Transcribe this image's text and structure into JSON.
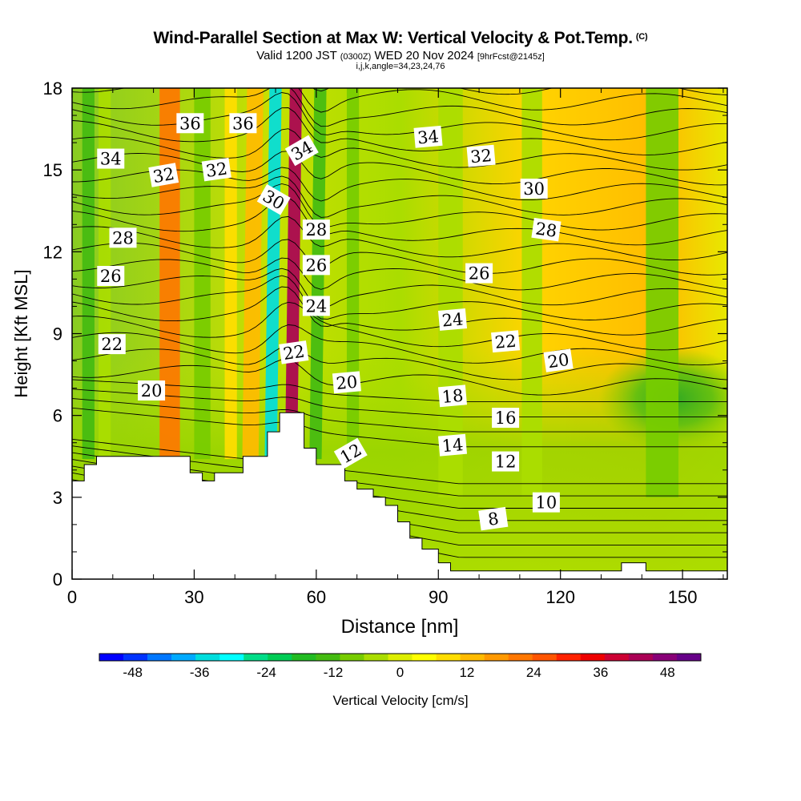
{
  "title": {
    "main": "Wind-Parallel Section at Max W: Vertical Velocity & Pot.Temp.",
    "copyright": "(C)",
    "valid": "Valid 1200 JST",
    "valid_utc": "(0300Z)",
    "date": "WED 20 Nov 2024",
    "forecast": "[9hrFcst@2145z]",
    "indices": "i,j,k,angle=34,23,24,76"
  },
  "chart_data": {
    "type": "heatmap",
    "xlabel": "Distance [nm]",
    "ylabel": "Height [Kft MSL]",
    "xlim": [
      0,
      161
    ],
    "ylim": [
      0,
      18
    ],
    "x_ticks": [
      0,
      30,
      60,
      90,
      120,
      150
    ],
    "y_ticks": [
      0,
      3,
      6,
      9,
      12,
      15,
      18
    ],
    "colorbar": {
      "label": "Vertical Velocity [cm/s]",
      "ticks": [
        -48,
        -36,
        -24,
        -12,
        0,
        12,
        24,
        36,
        48
      ],
      "range": [
        -54,
        54
      ],
      "colors": [
        "#0000ff",
        "#0033ff",
        "#0077ff",
        "#00aaff",
        "#00dddd",
        "#00ffff",
        "#00dd88",
        "#00cc55",
        "#22bb22",
        "#44bb11",
        "#77cc00",
        "#aadd00",
        "#ddee00",
        "#ffff00",
        "#ffdd00",
        "#ffbb00",
        "#ff9900",
        "#ff7700",
        "#ff5500",
        "#ff2200",
        "#ee0000",
        "#cc0033",
        "#aa0055",
        "#880077",
        "#660088"
      ]
    },
    "velocity_bands": [
      {
        "x": 4,
        "width": 3,
        "w": -14
      },
      {
        "x": 8,
        "width": 3,
        "w": -5
      },
      {
        "x": 24,
        "width": 5,
        "w": 20
      },
      {
        "x": 32,
        "width": 4,
        "w": -10
      },
      {
        "x": 39,
        "width": 3,
        "w": 8
      },
      {
        "x": 45,
        "width": 4,
        "w": 14
      },
      {
        "x": 50,
        "width": 3,
        "w": -34
      },
      {
        "x": 55,
        "width": 3,
        "w": 42
      },
      {
        "x": 61,
        "width": 3,
        "w": -12
      },
      {
        "x": 69,
        "width": 3,
        "w": -10
      },
      {
        "x": 93,
        "width": 6,
        "w": -4
      },
      {
        "x": 113,
        "width": 5,
        "w": -6
      },
      {
        "x": 145,
        "width": 8,
        "w": -8
      }
    ],
    "terrain": [
      [
        0,
        3.6
      ],
      [
        3,
        3.6
      ],
      [
        3,
        4.2
      ],
      [
        6,
        4.2
      ],
      [
        6,
        4.5
      ],
      [
        29,
        4.5
      ],
      [
        29,
        3.9
      ],
      [
        32,
        3.9
      ],
      [
        32,
        3.6
      ],
      [
        35,
        3.6
      ],
      [
        35,
        3.9
      ],
      [
        42,
        3.9
      ],
      [
        42,
        4.5
      ],
      [
        48,
        4.5
      ],
      [
        48,
        5.4
      ],
      [
        51,
        5.4
      ],
      [
        51,
        6.1
      ],
      [
        57,
        6.1
      ],
      [
        57,
        4.8
      ],
      [
        60,
        4.8
      ],
      [
        60,
        4.2
      ],
      [
        67,
        4.2
      ],
      [
        67,
        3.6
      ],
      [
        70,
        3.6
      ],
      [
        70,
        3.3
      ],
      [
        74,
        3.3
      ],
      [
        74,
        3.0
      ],
      [
        77,
        3.0
      ],
      [
        77,
        2.7
      ],
      [
        80,
        2.7
      ],
      [
        80,
        2.1
      ],
      [
        83,
        2.1
      ],
      [
        83,
        1.5
      ],
      [
        86,
        1.5
      ],
      [
        86,
        1.1
      ],
      [
        90,
        1.1
      ],
      [
        90,
        0.6
      ],
      [
        93,
        0.6
      ],
      [
        93,
        0.3
      ],
      [
        135,
        0.3
      ],
      [
        135,
        0.6
      ],
      [
        141,
        0.6
      ],
      [
        141,
        0.3
      ],
      [
        161,
        0.3
      ],
      [
        161,
        0
      ],
      [
        0,
        0
      ]
    ],
    "isentropes": [
      8,
      10,
      12,
      14,
      16,
      18,
      20,
      22,
      24,
      26,
      28,
      30,
      32,
      34,
      36
    ],
    "contour_labels": [
      {
        "text": "36",
        "x": 29,
        "y": 16.7,
        "angle": 0
      },
      {
        "text": "36",
        "x": 42,
        "y": 16.7,
        "angle": 0
      },
      {
        "text": "34",
        "x": 9.5,
        "y": 15.4,
        "angle": 0
      },
      {
        "text": "32",
        "x": 22.5,
        "y": 14.8,
        "angle": -10
      },
      {
        "text": "32",
        "x": 35.5,
        "y": 15.0,
        "angle": -8
      },
      {
        "text": "34",
        "x": 56.5,
        "y": 15.7,
        "angle": -30
      },
      {
        "text": "30",
        "x": 49.5,
        "y": 13.9,
        "angle": 30
      },
      {
        "text": "34",
        "x": 87.5,
        "y": 16.2,
        "angle": -5
      },
      {
        "text": "32",
        "x": 100.5,
        "y": 15.5,
        "angle": -5
      },
      {
        "text": "30",
        "x": 113.5,
        "y": 14.3,
        "angle": 0
      },
      {
        "text": "28",
        "x": 12.5,
        "y": 12.5,
        "angle": 0
      },
      {
        "text": "28",
        "x": 60,
        "y": 12.8,
        "angle": 0
      },
      {
        "text": "28",
        "x": 116.5,
        "y": 12.8,
        "angle": 8
      },
      {
        "text": "26",
        "x": 9.5,
        "y": 11.1,
        "angle": 0
      },
      {
        "text": "26",
        "x": 60,
        "y": 11.5,
        "angle": 0
      },
      {
        "text": "26",
        "x": 100,
        "y": 11.2,
        "angle": 0
      },
      {
        "text": "24",
        "x": 60,
        "y": 10.0,
        "angle": 0
      },
      {
        "text": "24",
        "x": 93.5,
        "y": 9.5,
        "angle": -5
      },
      {
        "text": "22",
        "x": 9.8,
        "y": 8.6,
        "angle": 0
      },
      {
        "text": "22",
        "x": 54.5,
        "y": 8.3,
        "angle": -8
      },
      {
        "text": "22",
        "x": 106.5,
        "y": 8.7,
        "angle": -5
      },
      {
        "text": "20",
        "x": 119.5,
        "y": 8.0,
        "angle": -8
      },
      {
        "text": "20",
        "x": 19.5,
        "y": 6.9,
        "angle": 0
      },
      {
        "text": "20",
        "x": 67.5,
        "y": 7.2,
        "angle": -5
      },
      {
        "text": "18",
        "x": 93.5,
        "y": 6.7,
        "angle": -5
      },
      {
        "text": "16",
        "x": 106.5,
        "y": 5.9,
        "angle": 0
      },
      {
        "text": "14",
        "x": 93.5,
        "y": 4.9,
        "angle": -5
      },
      {
        "text": "12",
        "x": 68.5,
        "y": 4.6,
        "angle": -30
      },
      {
        "text": "12",
        "x": 106.5,
        "y": 4.3,
        "angle": 0
      },
      {
        "text": "10",
        "x": 116.5,
        "y": 2.8,
        "angle": 0
      },
      {
        "text": "8",
        "x": 103.5,
        "y": 2.2,
        "angle": -8
      }
    ]
  }
}
